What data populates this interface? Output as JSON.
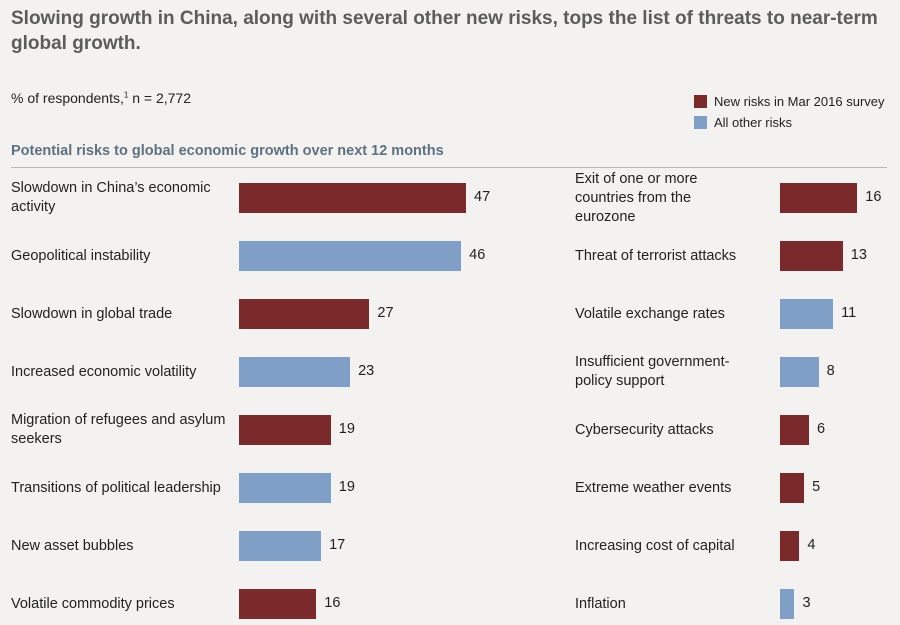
{
  "title": "Slowing growth in China, along with several other new risks, tops the list of threats to near-term global growth.",
  "subtitle": {
    "text": "% of respondents,",
    "footnote": "1",
    "n": " n = 2,772"
  },
  "chart_data": {
    "type": "bar",
    "orientation": "horizontal",
    "title": "Potential risks to global economic growth over next 12 months",
    "unit": "% of respondents",
    "colors": {
      "new": "#7b2a2c",
      "other": "#809fc7"
    },
    "legend": [
      {
        "key": "new",
        "label": "New risks in Mar 2016 survey"
      },
      {
        "key": "other",
        "label": "All other risks"
      }
    ],
    "legend_position": "top-right",
    "columns": [
      [
        {
          "label": "Slowdown in China’s economic activity",
          "value": 47,
          "type": "new"
        },
        {
          "label": "Geopolitical instability",
          "value": 46,
          "type": "other"
        },
        {
          "label": "Slowdown in global trade",
          "value": 27,
          "type": "new"
        },
        {
          "label": "Increased economic volatility",
          "value": 23,
          "type": "other"
        },
        {
          "label": "Migration of refugees and asylum seekers",
          "value": 19,
          "type": "new"
        },
        {
          "label": "Transitions of political leadership",
          "value": 19,
          "type": "other"
        },
        {
          "label": "New asset bubbles",
          "value": 17,
          "type": "other"
        },
        {
          "label": "Volatile commodity prices",
          "value": 16,
          "type": "new"
        }
      ],
      [
        {
          "label": "Exit of one or more countries from the eurozone",
          "value": 16,
          "type": "new"
        },
        {
          "label": "Threat of terrorist attacks",
          "value": 13,
          "type": "new"
        },
        {
          "label": "Volatile exchange rates",
          "value": 11,
          "type": "other"
        },
        {
          "label": "Insufficient government-policy support",
          "value": 8,
          "type": "other"
        },
        {
          "label": "Cybersecurity attacks",
          "value": 6,
          "type": "new"
        },
        {
          "label": "Extreme weather events",
          "value": 5,
          "type": "new"
        },
        {
          "label": "Increasing cost of capital",
          "value": 4,
          "type": "new"
        },
        {
          "label": "Inflation",
          "value": 3,
          "type": "other"
        }
      ]
    ]
  }
}
